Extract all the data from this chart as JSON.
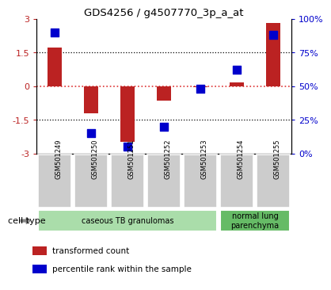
{
  "title": "GDS4256 / g4507770_3p_a_at",
  "samples": [
    "GSM501249",
    "GSM501250",
    "GSM501251",
    "GSM501252",
    "GSM501253",
    "GSM501254",
    "GSM501255"
  ],
  "transformed_count": [
    1.7,
    -1.2,
    -2.5,
    -0.65,
    -0.05,
    0.15,
    2.8
  ],
  "percentile_rank": [
    90,
    15,
    5,
    20,
    48,
    62,
    88
  ],
  "ylim_left": [
    -3,
    3
  ],
  "ylim_right": [
    0,
    100
  ],
  "yticks_left": [
    -3,
    -1.5,
    0,
    1.5,
    3
  ],
  "yticks_right": [
    0,
    25,
    50,
    75,
    100
  ],
  "bar_color": "#bb2222",
  "dot_color": "#0000cc",
  "hline_color": "#dd3333",
  "dotline_y": [
    1.5,
    -1.5
  ],
  "groups": [
    {
      "label": "caseous TB granulomas",
      "start": 0,
      "end": 5,
      "color": "#aaddaa"
    },
    {
      "label": "normal lung\nparenchyma",
      "start": 5,
      "end": 7,
      "color": "#66bb66"
    }
  ],
  "cell_type_label": "cell type",
  "legend_items": [
    {
      "label": "transformed count",
      "color": "#bb2222"
    },
    {
      "label": "percentile rank within the sample",
      "color": "#0000cc"
    }
  ],
  "bar_width": 0.4,
  "dot_size": 45,
  "bg_color": "#ffffff"
}
